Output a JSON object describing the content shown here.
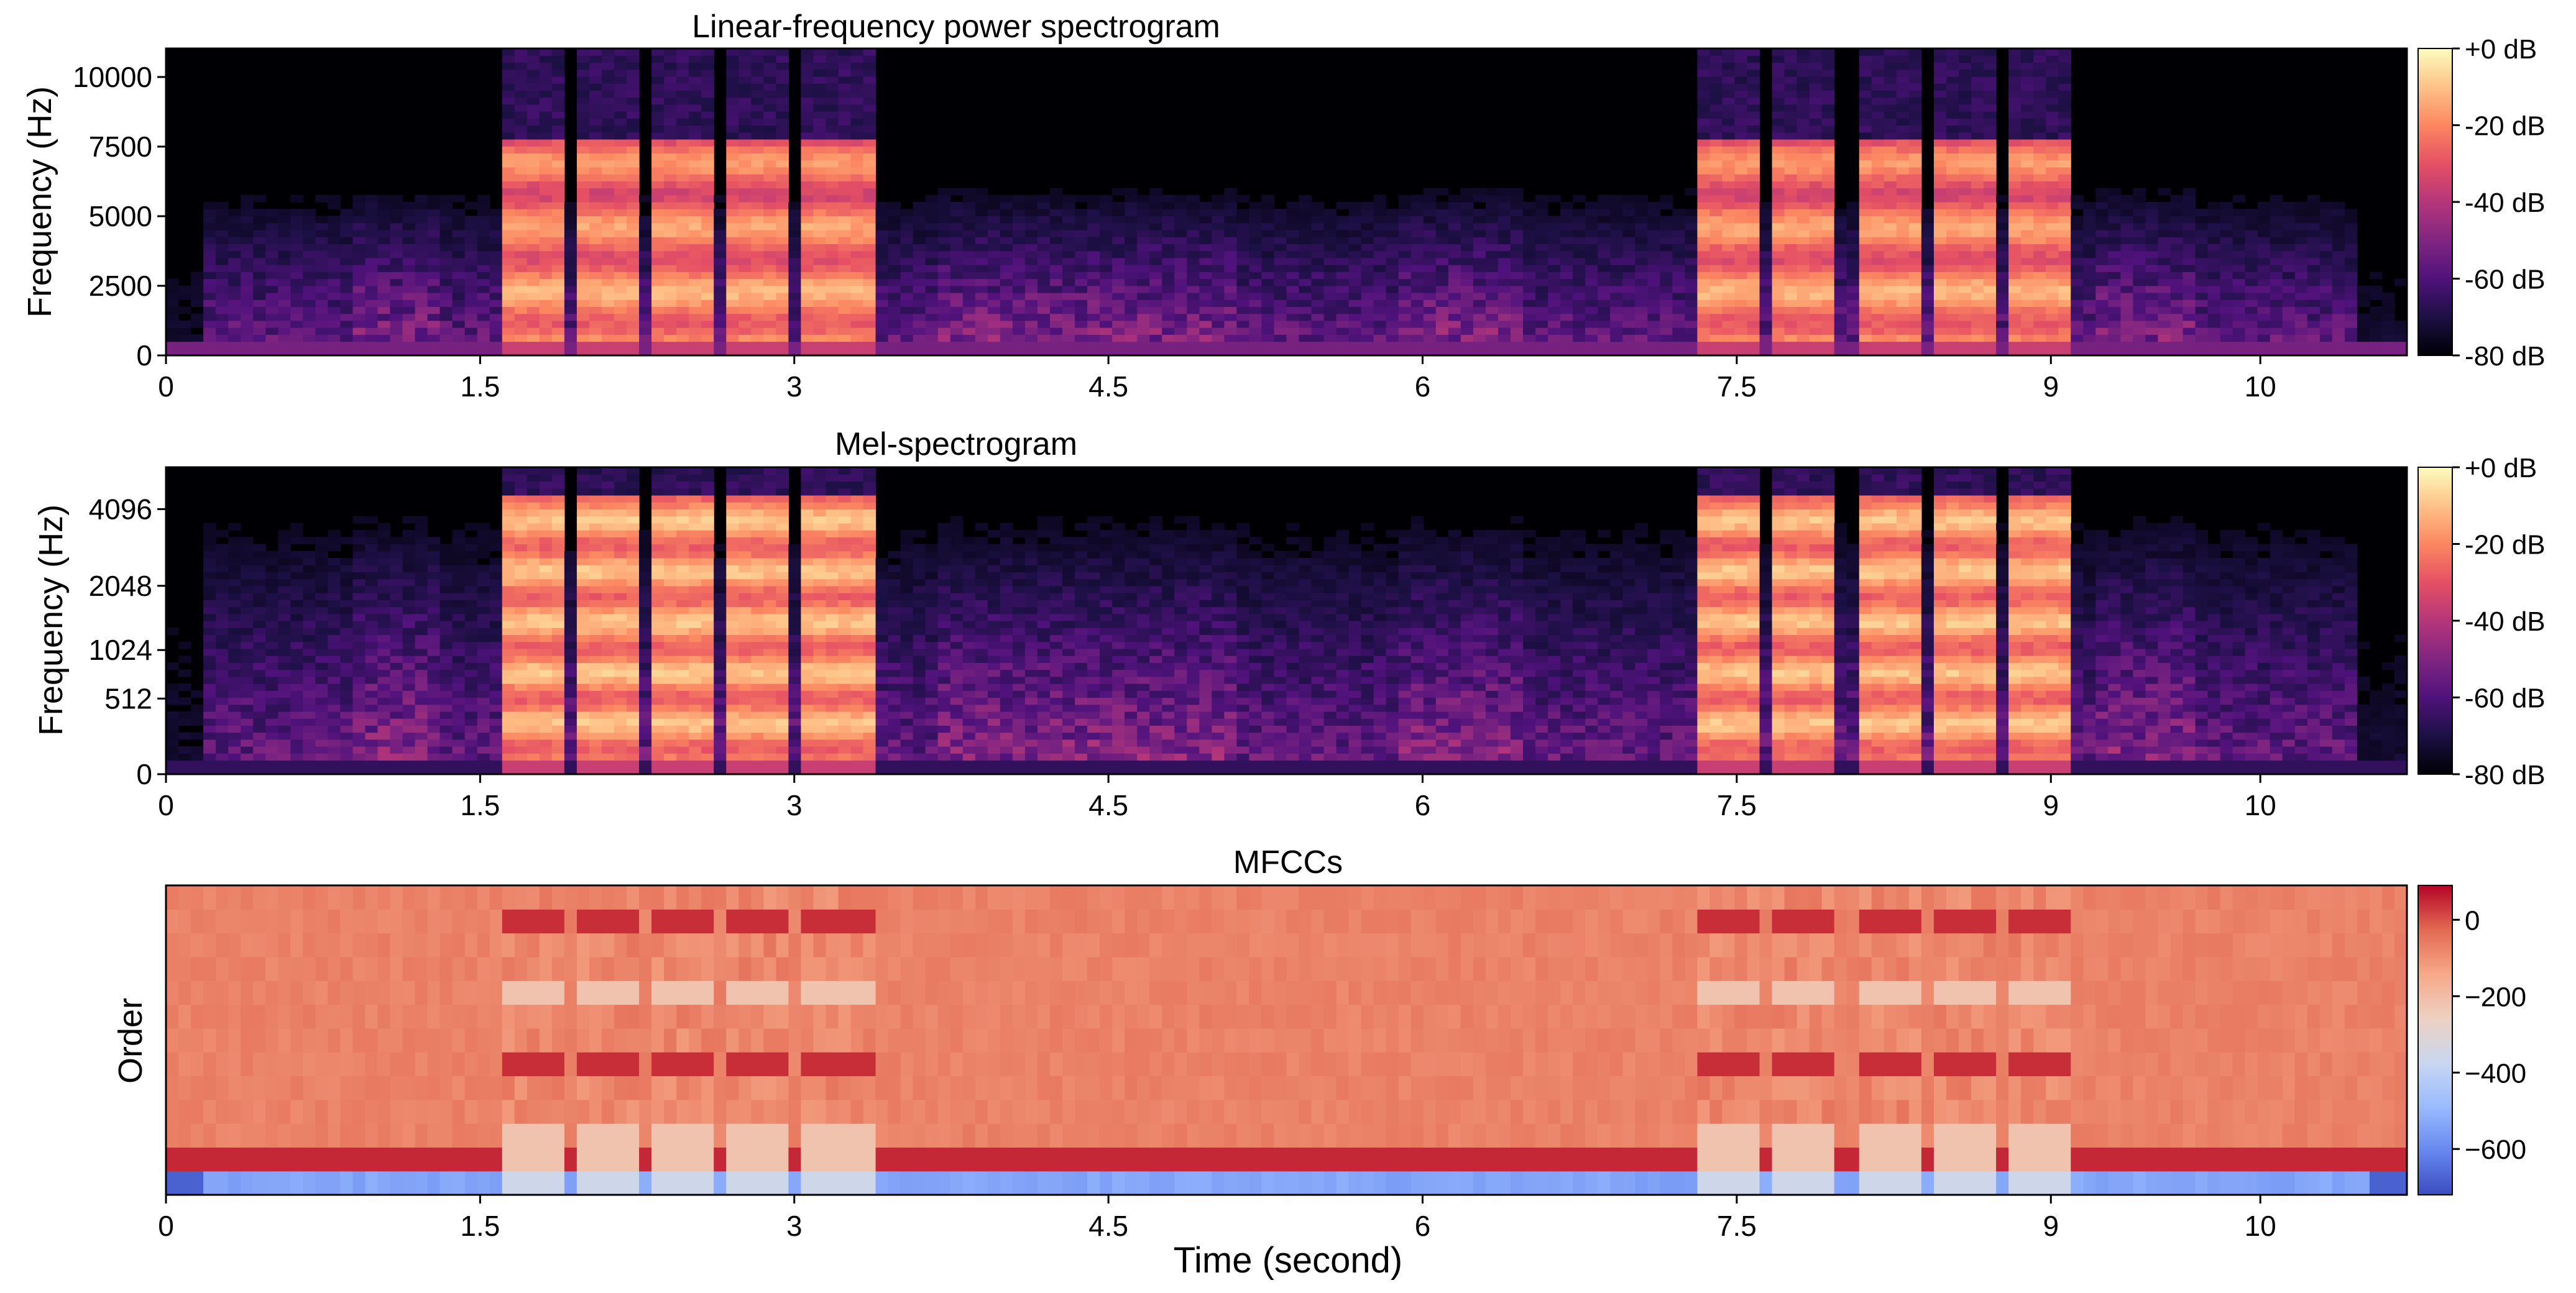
{
  "chart_data": [
    {
      "type": "heatmap",
      "title": "Linear-frequency power spectrogram",
      "ylabel": "Frequency (Hz)",
      "xlabel": "",
      "xlim": [
        0,
        10.7
      ],
      "ylim": [
        0,
        11025
      ],
      "x_ticks": [
        0,
        1.5,
        3,
        4.5,
        6,
        7.5,
        9,
        10
      ],
      "x_tick_labels": [
        "0",
        "1.5",
        "3",
        "4.5",
        "6",
        "7.5",
        "9",
        "10"
      ],
      "y_ticks": [
        0,
        2500,
        5000,
        7500,
        10000
      ],
      "y_tick_labels": [
        "0",
        "2500",
        "5000",
        "7500",
        "10000"
      ],
      "colormap": "magma",
      "colorbar": {
        "range": [
          -80,
          0
        ],
        "ticks": [
          0,
          -20,
          -40,
          -60,
          -80
        ],
        "tick_labels": [
          "+0 dB",
          "-20 dB",
          "-40 dB",
          "-60 dB",
          "-80 dB"
        ]
      },
      "loud_segments_seconds": [
        [
          1.58,
          1.88
        ],
        [
          1.94,
          2.24
        ],
        [
          2.32,
          2.6
        ],
        [
          2.68,
          2.98
        ],
        [
          3.06,
          3.4
        ],
        [
          7.3,
          7.58
        ],
        [
          7.66,
          7.96
        ],
        [
          8.06,
          8.36
        ],
        [
          8.44,
          8.72
        ],
        [
          8.82,
          9.12
        ]
      ],
      "loud_segment_max_freq_hz": 7700
    },
    {
      "type": "heatmap",
      "title": "Mel-spectrogram",
      "ylabel": "Frequency (Hz)",
      "xlabel": "",
      "xlim": [
        0,
        10.7
      ],
      "y_scale": "mel",
      "x_ticks": [
        0,
        1.5,
        3,
        4.5,
        6,
        7.5,
        9,
        10
      ],
      "x_tick_labels": [
        "0",
        "1.5",
        "3",
        "4.5",
        "6",
        "7.5",
        "9",
        "10"
      ],
      "y_ticks": [
        0,
        512,
        1024,
        2048,
        4096
      ],
      "y_tick_labels": [
        "0",
        "512",
        "1024",
        "2048",
        "4096"
      ],
      "colormap": "magma",
      "colorbar": {
        "range": [
          -80,
          0
        ],
        "ticks": [
          0,
          -20,
          -40,
          -60,
          -80
        ],
        "tick_labels": [
          "+0 dB",
          "-20 dB",
          "-40 dB",
          "-60 dB",
          "-80 dB"
        ]
      }
    },
    {
      "type": "heatmap",
      "title": "MFCCs",
      "ylabel": "Order",
      "xlabel": "Time (second)",
      "xlim": [
        0,
        10.7
      ],
      "x_ticks": [
        0,
        1.5,
        3,
        4.5,
        6,
        7.5,
        9,
        10
      ],
      "x_tick_labels": [
        "0",
        "1.5",
        "3",
        "4.5",
        "6",
        "7.5",
        "9",
        "10"
      ],
      "colormap": "coolwarm",
      "colorbar": {
        "range": [
          -720,
          90
        ],
        "ticks": [
          0,
          -200,
          -400,
          -600
        ],
        "tick_labels": [
          "0",
          "−200",
          "−400",
          "−600"
        ]
      },
      "n_coefficients": 13
    }
  ],
  "colors": {
    "magma": [
      "#000004",
      "#1c1044",
      "#4f127b",
      "#812581",
      "#b5367a",
      "#e55064",
      "#fb8761",
      "#fec287",
      "#fcfdbf"
    ],
    "coolwarm": [
      "#3b4cc0",
      "#6788ee",
      "#9abbff",
      "#c9d7f0",
      "#edd1c2",
      "#f7a889",
      "#e26952",
      "#b40426"
    ]
  }
}
